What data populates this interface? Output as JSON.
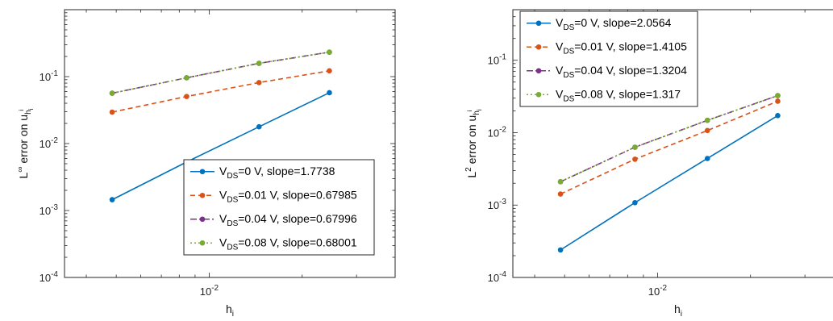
{
  "chart_data": [
    {
      "type": "line",
      "xscale": "log",
      "yscale": "log",
      "xlim": [
        0.0034,
        0.04
      ],
      "ylim": [
        0.0001,
        1
      ],
      "xticks": [
        {
          "value": 0.01,
          "base": "10",
          "exp": "-2"
        }
      ],
      "yticks": [
        {
          "value": 0.0001,
          "base": "10",
          "exp": "-4"
        },
        {
          "value": 0.001,
          "base": "10",
          "exp": "-3"
        },
        {
          "value": 0.01,
          "base": "10",
          "exp": "-2"
        },
        {
          "value": 0.1,
          "base": "10",
          "exp": "-1"
        }
      ],
      "xlabel": {
        "main": "h",
        "sub": "i"
      },
      "ylabel": {
        "prefix": "L",
        "sup": "∞",
        "middle": " error on u",
        "sub": "h",
        "subsub": "i",
        "subsup": "i"
      },
      "legend_position": "lower-right",
      "x": [
        0.00485,
        0.00845,
        0.0145,
        0.0245
      ],
      "series": [
        {
          "label_prefix": "V",
          "label_sub": "DS",
          "label_rest": "=0 V, slope=1.7738",
          "color": "#0072BD",
          "dash": "",
          "values": [
            0.00145,
            0.0053,
            0.0178,
            0.0575
          ]
        },
        {
          "label_prefix": "V",
          "label_sub": "DS",
          "label_rest": "=0.01 V, slope=0.67985",
          "color": "#D95319",
          "dash": "6,4",
          "values": [
            0.0295,
            0.0505,
            0.0815,
            0.122
          ]
        },
        {
          "label_prefix": "V",
          "label_sub": "DS",
          "label_rest": "=0.04 V, slope=0.67996",
          "color": "#7E2F8E",
          "dash": "8,3,2,3",
          "values": [
            0.0565,
            0.096,
            0.158,
            0.232
          ]
        },
        {
          "label_prefix": "V",
          "label_sub": "DS",
          "label_rest": "=0.08 V, slope=0.68001",
          "color": "#77AC30",
          "dash": "2,3",
          "values": [
            0.0565,
            0.096,
            0.158,
            0.232
          ]
        }
      ]
    },
    {
      "type": "line",
      "xscale": "log",
      "yscale": "log",
      "xlim": [
        0.0034,
        0.04
      ],
      "ylim": [
        0.0001,
        0.5
      ],
      "xticks": [
        {
          "value": 0.01,
          "base": "10",
          "exp": "-2"
        }
      ],
      "yticks": [
        {
          "value": 0.0001,
          "base": "10",
          "exp": "-4"
        },
        {
          "value": 0.001,
          "base": "10",
          "exp": "-3"
        },
        {
          "value": 0.01,
          "base": "10",
          "exp": "-2"
        },
        {
          "value": 0.1,
          "base": "10",
          "exp": "-1"
        }
      ],
      "xlabel": {
        "main": "h",
        "sub": "i"
      },
      "ylabel": {
        "prefix": "L",
        "sup": "2",
        "middle": " error on u",
        "sub": "h",
        "subsub": "i",
        "subsup": "i"
      },
      "legend_position": "top-left",
      "x": [
        0.00485,
        0.00845,
        0.0145,
        0.0245
      ],
      "series": [
        {
          "label_prefix": "V",
          "label_sub": "DS",
          "label_rest": "=0 V, slope=2.0564",
          "color": "#0072BD",
          "dash": "",
          "values": [
            0.00024,
            0.00108,
            0.0044,
            0.0172
          ]
        },
        {
          "label_prefix": "V",
          "label_sub": "DS",
          "label_rest": "=0.01 V, slope=1.4105",
          "color": "#D95319",
          "dash": "6,4",
          "values": [
            0.00142,
            0.0043,
            0.0107,
            0.0272
          ]
        },
        {
          "label_prefix": "V",
          "label_sub": "DS",
          "label_rest": "=0.04 V, slope=1.3204",
          "color": "#7E2F8E",
          "dash": "8,3,2,3",
          "values": [
            0.0021,
            0.0063,
            0.0148,
            0.0325
          ]
        },
        {
          "label_prefix": "V",
          "label_sub": "DS",
          "label_rest": "=0.08 V, slope=1.317",
          "color": "#77AC30",
          "dash": "2,3",
          "values": [
            0.0021,
            0.0063,
            0.0148,
            0.0325
          ]
        }
      ]
    }
  ]
}
